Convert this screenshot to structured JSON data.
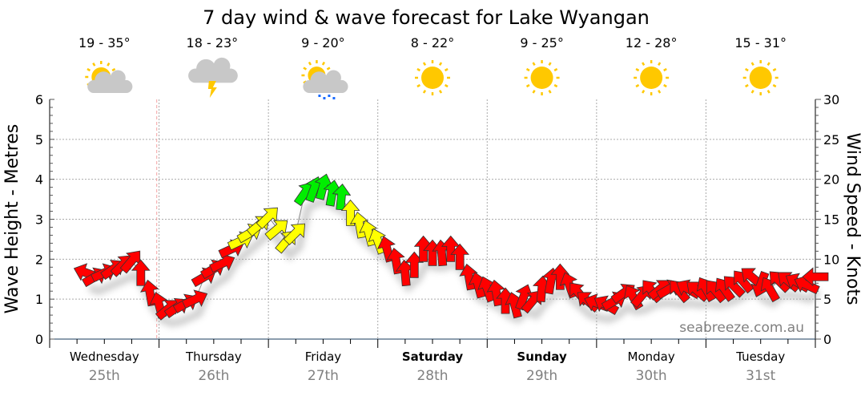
{
  "chart_data": {
    "type": "scatter",
    "title": "7 day wind & wave forecast for Lake Wyangan",
    "ylabel_left": "Wave Height - Metres",
    "ylabel_right": "Wind Speed - Knots",
    "ylim_left": [
      0,
      6
    ],
    "ylim_right": [
      0,
      30
    ],
    "yticks_left": [
      "0",
      "1",
      "2",
      "3",
      "4",
      "5",
      "6"
    ],
    "yticks_right": [
      "0",
      "5",
      "10",
      "15",
      "20",
      "25",
      "30"
    ],
    "grid": true,
    "watermark": "seabreeze.com.au",
    "colors": {
      "light": "#ff0000",
      "moderate": "#ffff00",
      "strong": "#00ee00"
    },
    "thresholds_knots": [
      12,
      17.5
    ],
    "now_hour": 23.5,
    "days": [
      {
        "name": "Wednesday",
        "date": "25th",
        "temp": "19 - 35°",
        "icon": "partly-cloudy-icon",
        "bold": false
      },
      {
        "name": "Thursday",
        "date": "26th",
        "temp": "18 - 23°",
        "icon": "thunderstorm-icon",
        "bold": false
      },
      {
        "name": "Friday",
        "date": "27th",
        "temp": "9 - 20°",
        "icon": "showers-partly-cloudy-icon",
        "bold": false
      },
      {
        "name": "Saturday",
        "date": "28th",
        "temp": "8 - 22°",
        "icon": "sunny-icon",
        "bold": true
      },
      {
        "name": "Sunday",
        "date": "29th",
        "temp": "9 - 25°",
        "icon": "sunny-icon",
        "bold": true
      },
      {
        "name": "Monday",
        "date": "30th",
        "temp": "12 - 28°",
        "icon": "sunny-icon",
        "bold": false
      },
      {
        "name": "Tuesday",
        "date": "31st",
        "temp": "15 - 31°",
        "icon": "sunny-icon",
        "bold": false
      }
    ],
    "wind_series": {
      "hour": [
        8,
        10,
        12,
        14,
        16,
        18,
        20,
        22,
        24,
        26,
        28,
        30,
        32,
        34,
        36,
        38,
        40,
        42,
        44,
        46,
        48,
        50,
        52,
        54,
        56,
        58,
        60,
        62,
        64,
        66,
        68,
        70,
        72,
        74,
        76,
        78,
        80,
        82,
        84,
        86,
        88,
        90,
        92,
        94,
        96,
        98,
        100,
        102,
        104,
        106,
        108,
        110,
        112,
        114,
        116,
        118,
        120,
        122,
        124,
        126,
        128,
        130,
        132,
        134,
        136,
        138,
        140,
        142,
        144,
        146,
        148,
        150,
        152,
        154,
        156,
        158,
        160,
        162,
        164,
        166,
        168
      ],
      "knots": [
        8.3,
        7.8,
        8.3,
        8.8,
        9.3,
        9.8,
        8.3,
        5.8,
        4.3,
        3.8,
        4.0,
        4.5,
        5.0,
        7.8,
        8.8,
        9.5,
        11.3,
        12.3,
        13.3,
        14.3,
        15.3,
        13.8,
        12.3,
        13.3,
        18.3,
        18.8,
        19.1,
        18.3,
        17.8,
        15.8,
        14.3,
        13.3,
        12.3,
        11.3,
        9.8,
        8.3,
        9.3,
        11.3,
        10.8,
        10.8,
        11.3,
        10.3,
        7.8,
        6.8,
        6.3,
        5.8,
        4.8,
        4.3,
        5.3,
        4.8,
        6.3,
        7.3,
        7.8,
        6.8,
        5.8,
        4.8,
        4.5,
        4.3,
        4.8,
        5.8,
        5.3,
        5.5,
        6.1,
        6.3,
        6.3,
        6.1,
        6.3,
        6.1,
        6.3,
        6.1,
        6.3,
        6.7,
        7.3,
        7.8,
        6.8,
        6.3,
        7.3,
        7.3,
        7.1,
        6.8,
        7.8
      ],
      "direction_deg": [
        290,
        60,
        65,
        55,
        45,
        40,
        0,
        350,
        345,
        50,
        55,
        60,
        65,
        60,
        60,
        65,
        65,
        65,
        60,
        50,
        45,
        50,
        40,
        45,
        35,
        20,
        15,
        10,
        5,
        0,
        350,
        345,
        340,
        345,
        350,
        355,
        0,
        0,
        0,
        355,
        0,
        0,
        350,
        345,
        340,
        350,
        0,
        345,
        20,
        40,
        5,
        10,
        0,
        340,
        320,
        310,
        290,
        300,
        60,
        55,
        330,
        40,
        320,
        50,
        60,
        320,
        300,
        310,
        330,
        320,
        325,
        315,
        320,
        310,
        200,
        330,
        315,
        310,
        300,
        295,
        270
      ]
    }
  }
}
